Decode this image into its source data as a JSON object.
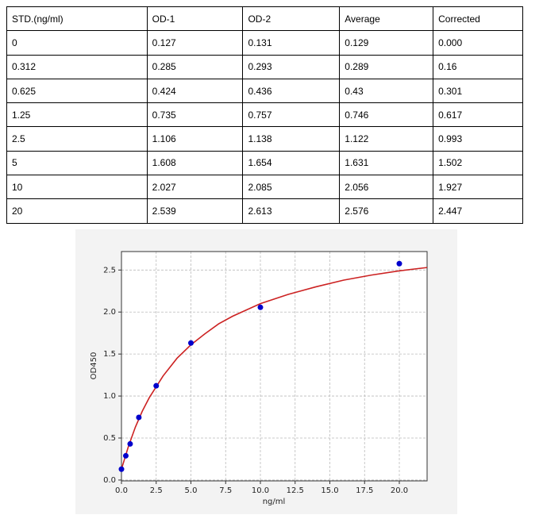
{
  "table": {
    "header": [
      "STD.(ng/ml)",
      "OD-1",
      "OD-2",
      "Average",
      "Corrected"
    ],
    "rows": [
      [
        "0",
        "0.127",
        "0.131",
        "0.129",
        "0.000"
      ],
      [
        "0.312",
        "0.285",
        "0.293",
        "0.289",
        "0.16"
      ],
      [
        "0.625",
        "0.424",
        "0.436",
        "0.43",
        "0.301"
      ],
      [
        "1.25",
        "0.735",
        "0.757",
        "0.746",
        "0.617"
      ],
      [
        "2.5",
        "1.106",
        "1.138",
        "1.122",
        "0.993"
      ],
      [
        "5",
        "1.608",
        "1.654",
        "1.631",
        "1.502"
      ],
      [
        "10",
        "2.027",
        "2.085",
        "2.056",
        "1.927"
      ],
      [
        "20",
        "2.539",
        "2.613",
        "2.576",
        "2.447"
      ]
    ]
  },
  "chart_data": {
    "type": "scatter",
    "xlabel": "ng/ml",
    "ylabel": "OD450",
    "xlim": [
      0,
      22
    ],
    "ylim": [
      -0.01,
      2.72
    ],
    "grid": true,
    "xticks": [
      {
        "value": 0,
        "label": "0.0"
      },
      {
        "value": 2.5,
        "label": "2.5"
      },
      {
        "value": 5,
        "label": "5.0"
      },
      {
        "value": 7.5,
        "label": "7.5"
      },
      {
        "value": 10,
        "label": "10.0"
      },
      {
        "value": 12.5,
        "label": "12.5"
      },
      {
        "value": 15,
        "label": "15.0"
      },
      {
        "value": 17.5,
        "label": "17.5"
      },
      {
        "value": 20,
        "label": "20.0"
      }
    ],
    "yticks": [
      {
        "value": 0,
        "label": "0.0"
      },
      {
        "value": 0.5,
        "label": "0.5"
      },
      {
        "value": 1,
        "label": "1.0"
      },
      {
        "value": 1.5,
        "label": "1.5"
      },
      {
        "value": 2,
        "label": "2.0"
      },
      {
        "value": 2.5,
        "label": "2.5"
      }
    ],
    "points": {
      "color": "#0000cc",
      "x": [
        0,
        0.312,
        0.625,
        1.25,
        2.5,
        5,
        10,
        20
      ],
      "values": [
        0.129,
        0.289,
        0.43,
        0.746,
        1.122,
        1.631,
        2.056,
        2.576
      ]
    },
    "fit": {
      "color": "#cc2222",
      "x": [
        0,
        0.5,
        1,
        1.5,
        2,
        3,
        4,
        5,
        6,
        7,
        8,
        10,
        12,
        14,
        16,
        18,
        20,
        22
      ],
      "values": [
        0.13,
        0.4,
        0.63,
        0.82,
        0.98,
        1.24,
        1.45,
        1.61,
        1.74,
        1.86,
        1.95,
        2.1,
        2.21,
        2.3,
        2.38,
        2.44,
        2.49,
        2.53
      ]
    }
  }
}
